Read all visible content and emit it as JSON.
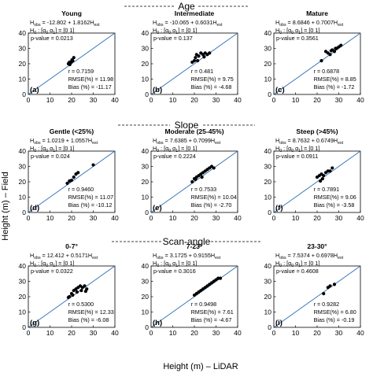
{
  "figure": {
    "xlabel": "Height (m) – LiDAR",
    "ylabel": "Height (m) – Field",
    "fit_color": "#2e6fb5",
    "point_color": "#000000"
  },
  "sections": [
    {
      "label": "Age"
    },
    {
      "label": "Slope"
    },
    {
      "label": "Scan-angle"
    }
  ],
  "chart_data": [
    {
      "type": "scatter",
      "panel": "(a)",
      "title": "Young",
      "equation": "H_obs = -12.802 + 1.8162H_est",
      "equation_display": "H obs = -12.802 + 1.8162H est",
      "h0": "H0 : [α0 α1] = [0 1]",
      "p_value": "p-value = 0.0213",
      "r": "r = 0.7159",
      "rmse": "RMSE(%) = 11.98",
      "bias": "Bias (%) = -11.17",
      "xlim": [
        0,
        40
      ],
      "ylim": [
        0,
        40
      ],
      "xticks": [
        0,
        10,
        20,
        30,
        40
      ],
      "yticks": [
        0,
        10,
        20,
        30,
        40
      ],
      "points": [
        [
          18.5,
          20
        ],
        [
          19,
          21
        ],
        [
          19.5,
          20.5
        ],
        [
          20,
          21.5
        ],
        [
          20.5,
          22
        ],
        [
          21,
          24
        ],
        [
          19.2,
          19.5
        ],
        [
          20.2,
          22.5
        ]
      ]
    },
    {
      "type": "scatter",
      "panel": "(b)",
      "title": "Intermediate",
      "equation": "H_obs = -10.065 + 0.6031H_est",
      "equation_display": "H obs = -10.065 + 0.6031H est",
      "h0": "H0 : [α0 α1] = [0 1]",
      "p_value": "p-value = 0.137",
      "r": "r = 0.481",
      "rmse": "RMSE(%) = 9.75",
      "bias": "Bias (%) = -4.68",
      "xlim": [
        0,
        40
      ],
      "ylim": [
        0,
        40
      ],
      "xticks": [
        0,
        10,
        20,
        30,
        40
      ],
      "yticks": [
        0,
        10,
        20,
        30,
        40
      ],
      "points": [
        [
          19,
          21
        ],
        [
          20,
          22
        ],
        [
          20.5,
          24
        ],
        [
          21,
          26
        ],
        [
          22,
          25
        ],
        [
          23,
          27
        ],
        [
          24,
          26
        ],
        [
          25,
          27
        ],
        [
          26,
          26
        ],
        [
          27,
          27
        ],
        [
          21.5,
          22
        ],
        [
          24.5,
          24.5
        ]
      ]
    },
    {
      "type": "scatter",
      "panel": "(c)",
      "title": "Mature",
      "equation": "H_obs = 8.6846 + 0.7007H_est",
      "equation_display": "H obs = 8.6846 + 0.7007H est",
      "h0": "H0 : [α0 α1] = [0 1]",
      "p_value": "p-value = 0.3561",
      "r": "r = 0.6878",
      "rmse": "RMSE(%) = 8.85",
      "bias": "Bias (%) = -1.72",
      "xlim": [
        0,
        40
      ],
      "ylim": [
        0,
        40
      ],
      "xticks": [
        0,
        10,
        20,
        30,
        40
      ],
      "yticks": [
        0,
        10,
        20,
        30,
        40
      ],
      "points": [
        [
          22,
          22
        ],
        [
          24,
          28
        ],
        [
          25,
          27
        ],
        [
          26,
          26
        ],
        [
          27,
          29
        ],
        [
          28,
          28
        ],
        [
          29,
          30
        ],
        [
          30,
          31
        ],
        [
          31,
          32
        ],
        [
          26.5,
          28.5
        ],
        [
          28.5,
          30
        ]
      ]
    },
    {
      "type": "scatter",
      "panel": "(d)",
      "title": "Gentle (<25%)",
      "equation": "H_obs = 1.0219 + 1.0557H_est",
      "equation_display": "H obs = 1.0219 + 1.0557H est",
      "h0": "H0 : [α0 α1] = [0 1]",
      "p_value": "p-value = 0.024",
      "r": "r = 0.9460",
      "rmse": "RMSE(%) = 11.07",
      "bias": "Bias (%) = -10.12",
      "xlim": [
        0,
        40
      ],
      "ylim": [
        0,
        40
      ],
      "xticks": [
        0,
        10,
        20,
        30,
        40
      ],
      "yticks": [
        0,
        10,
        20,
        30,
        40
      ],
      "points": [
        [
          18,
          19
        ],
        [
          19,
          20.5
        ],
        [
          20,
          21
        ],
        [
          21,
          23
        ],
        [
          22,
          25
        ],
        [
          23,
          26
        ],
        [
          30,
          31
        ]
      ]
    },
    {
      "type": "scatter",
      "panel": "(e)",
      "title": "Moderate (25-45%)",
      "equation": "H_obs = 7.6385 + 0.7099H_est",
      "equation_display": "H obs = 7.6385 + 0.7099H est",
      "h0": "H0 : [α0 α1] = [0 1]",
      "p_value": "p-value = 0.2224",
      "r": "r = 0.7533",
      "rmse": "RMSE(%) = 10.04",
      "bias": "Bias (%) = -2.70",
      "xlim": [
        0,
        40
      ],
      "ylim": [
        0,
        40
      ],
      "xticks": [
        0,
        10,
        20,
        30,
        40
      ],
      "yticks": [
        0,
        10,
        20,
        30,
        40
      ],
      "points": [
        [
          19,
          20
        ],
        [
          20,
          22
        ],
        [
          21,
          23
        ],
        [
          22,
          24
        ],
        [
          23,
          25
        ],
        [
          24,
          26
        ],
        [
          25,
          27
        ],
        [
          26,
          28
        ],
        [
          27,
          29
        ],
        [
          28,
          30
        ],
        [
          29,
          29
        ],
        [
          20.5,
          21.5
        ],
        [
          23.5,
          23
        ]
      ]
    },
    {
      "type": "scatter",
      "panel": "(f)",
      "title": "Steep (>45%)",
      "equation": "H_obs = 8.7632 + 0.6749H_est",
      "equation_display": "H obs = 8.7632 + 0.6749H est",
      "h0": "H0 : [α0 α1] = [0 1]",
      "p_value": "p-value = 0.0911",
      "r": "r = 0.7891",
      "rmse": "RMSE(%) = 9.06",
      "bias": "Bias (%) = -3.58",
      "xlim": [
        0,
        40
      ],
      "ylim": [
        0,
        40
      ],
      "xticks": [
        0,
        10,
        20,
        30,
        40
      ],
      "yticks": [
        0,
        10,
        20,
        30,
        40
      ],
      "points": [
        [
          20,
          23
        ],
        [
          21,
          24
        ],
        [
          22,
          25
        ],
        [
          23,
          24
        ],
        [
          24,
          26
        ],
        [
          25,
          27
        ],
        [
          26,
          27
        ],
        [
          27,
          29
        ],
        [
          21.5,
          20.5
        ],
        [
          22.5,
          22
        ]
      ]
    },
    {
      "type": "scatter",
      "panel": "(g)",
      "title": "0-7°",
      "equation": "H_obs = 12.412 + 0.5171H_est",
      "equation_display": "H obs = 12.412 + 0.5171H est",
      "h0": "H0 : [α0 α1] = [0 1]",
      "p_value": "p-value = 0.0322",
      "r": "r = 0.5300",
      "rmse": "RMSE(%) = 12.33",
      "bias": "Bias (%) = -6.08",
      "xlim": [
        0,
        40
      ],
      "ylim": [
        0,
        40
      ],
      "xticks": [
        0,
        10,
        20,
        30,
        40
      ],
      "yticks": [
        0,
        10,
        20,
        30,
        40
      ],
      "points": [
        [
          19,
          20
        ],
        [
          20,
          22
        ],
        [
          21,
          24
        ],
        [
          22,
          25
        ],
        [
          23,
          26
        ],
        [
          24,
          27
        ],
        [
          25,
          26
        ],
        [
          26,
          27
        ],
        [
          27,
          25
        ],
        [
          18.5,
          19.5
        ],
        [
          20.5,
          21
        ],
        [
          22.5,
          23
        ],
        [
          24.5,
          24
        ],
        [
          26.5,
          23.5
        ]
      ]
    },
    {
      "type": "scatter",
      "panel": "(h)",
      "title": "7-23°",
      "equation": "H_obs = 3.1725 + 0.9155H_est",
      "equation_display": "H obs = 3.1725 + 0.9155H est",
      "h0": "H0 : [α0 α1] = [0 1]",
      "p_value": "p-value = 0.3016",
      "r": "r = 0.9498",
      "rmse": "RMSE(%) = 7.61",
      "bias": "Bias (%) = -4.67",
      "xlim": [
        0,
        40
      ],
      "ylim": [
        0,
        40
      ],
      "xticks": [
        0,
        10,
        20,
        30,
        40
      ],
      "yticks": [
        0,
        10,
        20,
        30,
        40
      ],
      "points": [
        [
          20,
          21
        ],
        [
          21,
          22
        ],
        [
          22,
          23
        ],
        [
          23,
          24
        ],
        [
          24,
          25
        ],
        [
          25,
          26
        ],
        [
          26,
          27
        ],
        [
          27,
          28
        ],
        [
          28,
          29
        ],
        [
          29,
          30
        ],
        [
          30,
          31
        ],
        [
          31,
          32
        ],
        [
          32,
          32
        ]
      ]
    },
    {
      "type": "scatter",
      "panel": "(i)",
      "title": "23-30°",
      "equation": "H_obs = 7.5374 + 0.6978H_est",
      "equation_display": "H obs = 7.5374 + 0.6978H est",
      "h0": "H0 : [α0 α1] = [0 1]",
      "p_value": "p-value = 0.4608",
      "r": "r = 0.9282",
      "rmse": "RMSE(%) = 6.80",
      "bias": "Bias (%) = -0.19",
      "xlim": [
        0,
        40
      ],
      "ylim": [
        0,
        40
      ],
      "xticks": [
        0,
        10,
        20,
        30,
        40
      ],
      "yticks": [
        0,
        10,
        20,
        30,
        40
      ],
      "points": [
        [
          23,
          22
        ],
        [
          25,
          26
        ],
        [
          26,
          27
        ],
        [
          28,
          28
        ]
      ]
    }
  ]
}
